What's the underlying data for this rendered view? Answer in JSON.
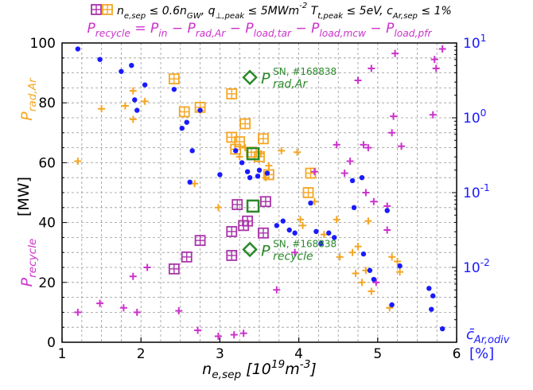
{
  "chart_data": {
    "type": "scatter",
    "x_axis": {
      "range": [
        1,
        6
      ],
      "ticks": [
        1,
        2,
        3,
        4,
        5,
        6
      ],
      "label": "n_{e,sep} [10^{19}m^{-3}]"
    },
    "y_left": {
      "range": [
        0,
        100
      ],
      "ticks": [
        0,
        20,
        40,
        60,
        80,
        100
      ],
      "label": "[MW]",
      "side_labels": [
        {
          "text": "P_{rad,Ar}",
          "color": "#f5a623"
        },
        {
          "text": "P_{recycle}",
          "color": "#cc33cc"
        }
      ]
    },
    "y_right": {
      "scale": "log",
      "range": [
        0.001,
        10
      ],
      "ticks": [
        "10^{1}",
        "10^{0}",
        "10^{-1}",
        "10^{-2}"
      ],
      "label_line1": "c̄_{Ar,odiv}",
      "label_line2": "[%]",
      "color": "#1a1aff"
    },
    "grid": true,
    "legend": {
      "text": "n_{e,sep} ≤ 0.6n_{GW}, q_{⊥,peak} ≤ 5MWm^{-2} T_{t,peak} ≤ 5eV, c_{Ar,sep} ≤ 1%",
      "placement": "top"
    },
    "equation": "P_{recycle} = P_{in} − P_{rad,Ar} − P_{load,tar} − P_{load,mcw} − P_{load,pfr}",
    "annotations": [
      {
        "text": "P^{SN, #168838}_{rad,Ar}",
        "x": 3.38,
        "y": 88.5,
        "color": "#2a8a2a"
      },
      {
        "text": "P^{SN, #168838}_{recycle}",
        "x": 3.38,
        "y": 31,
        "color": "#2a8a2a"
      }
    ],
    "colors": {
      "prad_all": "#f5a623",
      "prad_filtered": "#f5a623",
      "precycle_all": "#cc33cc",
      "precycle_filtered": "#aa33aa",
      "car": "#1a1aff",
      "highlight": "#2a8a2a"
    },
    "series": [
      {
        "key": "prad_all",
        "marker": "plus",
        "points": [
          [
            1.2,
            60.5
          ],
          [
            1.5,
            78
          ],
          [
            1.8,
            79
          ],
          [
            1.9,
            74.5
          ],
          [
            1.9,
            84
          ],
          [
            2.05,
            80.5
          ],
          [
            2.68,
            53
          ],
          [
            2.75,
            77.5
          ],
          [
            2.98,
            45
          ],
          [
            3.25,
            62
          ],
          [
            3.32,
            65
          ],
          [
            3.52,
            63
          ],
          [
            3.58,
            55
          ],
          [
            3.62,
            59
          ],
          [
            3.78,
            64
          ],
          [
            3.98,
            63.5
          ],
          [
            4.02,
            41
          ],
          [
            4.05,
            39
          ],
          [
            4.2,
            47
          ],
          [
            4.32,
            36
          ],
          [
            4.48,
            41
          ],
          [
            4.52,
            28.5
          ],
          [
            4.68,
            30
          ],
          [
            4.75,
            32
          ],
          [
            4.72,
            23
          ],
          [
            4.8,
            20
          ],
          [
            4.85,
            24
          ],
          [
            4.88,
            40.5
          ],
          [
            4.92,
            17
          ],
          [
            5.18,
            28.5
          ],
          [
            5.25,
            27
          ],
          [
            5.28,
            23.5
          ],
          [
            5.15,
            11.5
          ]
        ]
      },
      {
        "key": "prad_filtered",
        "marker": "square-cross",
        "points": [
          [
            2.42,
            88
          ],
          [
            2.55,
            77
          ],
          [
            2.75,
            78.5
          ],
          [
            3.15,
            83
          ],
          [
            3.15,
            68.5
          ],
          [
            3.2,
            64.5
          ],
          [
            3.25,
            67
          ],
          [
            3.32,
            73
          ],
          [
            3.4,
            63.5
          ],
          [
            3.5,
            62
          ],
          [
            3.55,
            68
          ],
          [
            3.62,
            56
          ],
          [
            4.12,
            50
          ],
          [
            4.15,
            56.5
          ]
        ]
      },
      {
        "key": "precycle_all",
        "marker": "plus",
        "points": [
          [
            1.2,
            10
          ],
          [
            1.48,
            13
          ],
          [
            1.78,
            11.5
          ],
          [
            1.9,
            22
          ],
          [
            1.95,
            10
          ],
          [
            2.08,
            25
          ],
          [
            2.48,
            10.5
          ],
          [
            2.72,
            4
          ],
          [
            2.98,
            2
          ],
          [
            3.18,
            2.5
          ],
          [
            3.3,
            3
          ],
          [
            3.72,
            17.5
          ],
          [
            3.95,
            30
          ],
          [
            4.2,
            57
          ],
          [
            4.48,
            66
          ],
          [
            4.58,
            56.5
          ],
          [
            4.65,
            60.5
          ],
          [
            4.75,
            87.5
          ],
          [
            4.82,
            66
          ],
          [
            4.85,
            50
          ],
          [
            4.88,
            65
          ],
          [
            4.92,
            91.5
          ],
          [
            4.95,
            47
          ],
          [
            4.98,
            20
          ],
          [
            5.12,
            45.5
          ],
          [
            5.18,
            70
          ],
          [
            5.2,
            75.5
          ],
          [
            5.22,
            96.5
          ],
          [
            5.3,
            65.5
          ],
          [
            5.12,
            37.5
          ],
          [
            5.7,
            76
          ],
          [
            5.72,
            94.5
          ],
          [
            5.74,
            91.5
          ],
          [
            5.82,
            98
          ]
        ]
      },
      {
        "key": "precycle_filtered",
        "marker": "square-cross",
        "points": [
          [
            2.42,
            24.5
          ],
          [
            2.58,
            28.5
          ],
          [
            2.75,
            34
          ],
          [
            3.15,
            37
          ],
          [
            3.15,
            29
          ],
          [
            3.22,
            46
          ],
          [
            3.3,
            39
          ],
          [
            3.35,
            40.5
          ],
          [
            3.55,
            36.5
          ],
          [
            3.58,
            47
          ]
        ]
      },
      {
        "key": "car",
        "marker": "dot",
        "points": [
          [
            1.2,
            98
          ],
          [
            1.48,
            94.5
          ],
          [
            1.75,
            90.5
          ],
          [
            1.88,
            92.5
          ],
          [
            1.92,
            81
          ],
          [
            1.95,
            77.5
          ],
          [
            2.05,
            86
          ],
          [
            2.52,
            71.5
          ],
          [
            2.58,
            73.5
          ],
          [
            2.75,
            77.5
          ],
          [
            3.2,
            64
          ],
          [
            3.28,
            60
          ],
          [
            3.35,
            57
          ],
          [
            3.38,
            55
          ],
          [
            3.48,
            55.5
          ],
          [
            3.5,
            57.5
          ],
          [
            3.6,
            56.5
          ],
          [
            3.72,
            39
          ],
          [
            3.8,
            40.5
          ],
          [
            3.88,
            37.5
          ],
          [
            3.95,
            36.5
          ],
          [
            4.15,
            46.5
          ],
          [
            4.22,
            37
          ],
          [
            4.28,
            33
          ],
          [
            4.38,
            36.5
          ],
          [
            4.45,
            35
          ],
          [
            4.68,
            54
          ],
          [
            4.7,
            45
          ],
          [
            4.8,
            55
          ],
          [
            4.82,
            29.5
          ],
          [
            4.9,
            24
          ],
          [
            4.95,
            21
          ],
          [
            5.12,
            44
          ],
          [
            5.18,
            12.5
          ],
          [
            5.28,
            25.5
          ],
          [
            5.65,
            18
          ],
          [
            5.7,
            15.5
          ],
          [
            5.68,
            11
          ],
          [
            5.82,
            4.5
          ],
          [
            3.0,
            56
          ],
          [
            2.42,
            84.5
          ],
          [
            2.65,
            64
          ],
          [
            2.62,
            53.5
          ]
        ]
      }
    ],
    "highlights": [
      {
        "marker": "square-open",
        "x": 3.42,
        "y": 63
      },
      {
        "marker": "square-open",
        "x": 3.42,
        "y": 45.5
      },
      {
        "marker": "diamond-open",
        "x": 3.38,
        "y": 88.5
      },
      {
        "marker": "diamond-open",
        "x": 3.38,
        "y": 31
      }
    ]
  }
}
